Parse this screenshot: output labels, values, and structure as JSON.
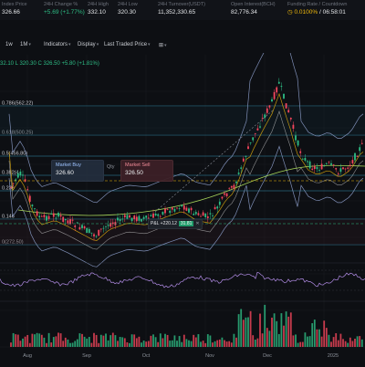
{
  "ticker": {
    "index_price": {
      "label": "Index Price",
      "value": "326.66"
    },
    "change_24h": {
      "label": "24H Change %",
      "value": "+5.69 (+1.77%)"
    },
    "high_24h": {
      "label": "24H High",
      "value": "332.10"
    },
    "low_24h": {
      "label": "24H Low",
      "value": "320.30"
    },
    "turnover_24h": {
      "label": "24H Turnover(USDT)",
      "value": "11,352,330.65"
    },
    "open_interest": {
      "label": "Open Interest(BCH)",
      "value": "82,776.34"
    },
    "funding": {
      "label": "Funding Rate / Countdown",
      "value": "0.0100%",
      "countdown": "/ 06:58:01"
    }
  },
  "toolbar": {
    "interval_1w": "1w",
    "interval_1m": "1M",
    "indicators": "Indicators",
    "display": "Display",
    "last_traded_price": "Last Traded Price",
    "settings_glyph": "⊞"
  },
  "ohlc_text": "32.10 L 320.30 C 326.50 +5.80 (+1.81%)",
  "fib_levels": [
    "0.786(562.22)",
    "0.618(500.25)",
    "0.5(456.80)",
    "0.382(4",
    "0.236",
    "0.146",
    "0(272.50)"
  ],
  "order": {
    "buy_label": "Market Buy",
    "buy_price": "326.60",
    "qty_label": "Qty",
    "sell_label": "Market Sell",
    "sell_price": "326.50"
  },
  "position": {
    "pnl_text": "P&L +220.12",
    "qty": "31.81",
    "close": "✕"
  },
  "axis_months": [
    "Aug",
    "Sep",
    "Oct",
    "Nov",
    "Dec",
    "2025"
  ],
  "colors": {
    "up": "#2ebd85",
    "down": "#f6465d",
    "fib": "#3aa6c9",
    "bg": "#0d0f13"
  },
  "chart_data": {
    "type": "candlestick",
    "x": [
      "Aug",
      "Sep",
      "Oct",
      "Nov",
      "Dec",
      "2025"
    ],
    "close_approx": [
      372,
      330,
      325,
      345,
      575,
      445
    ],
    "last_close": 326.5,
    "fib_retracement": [
      272.5,
      456.8,
      500.25,
      562.22
    ]
  }
}
